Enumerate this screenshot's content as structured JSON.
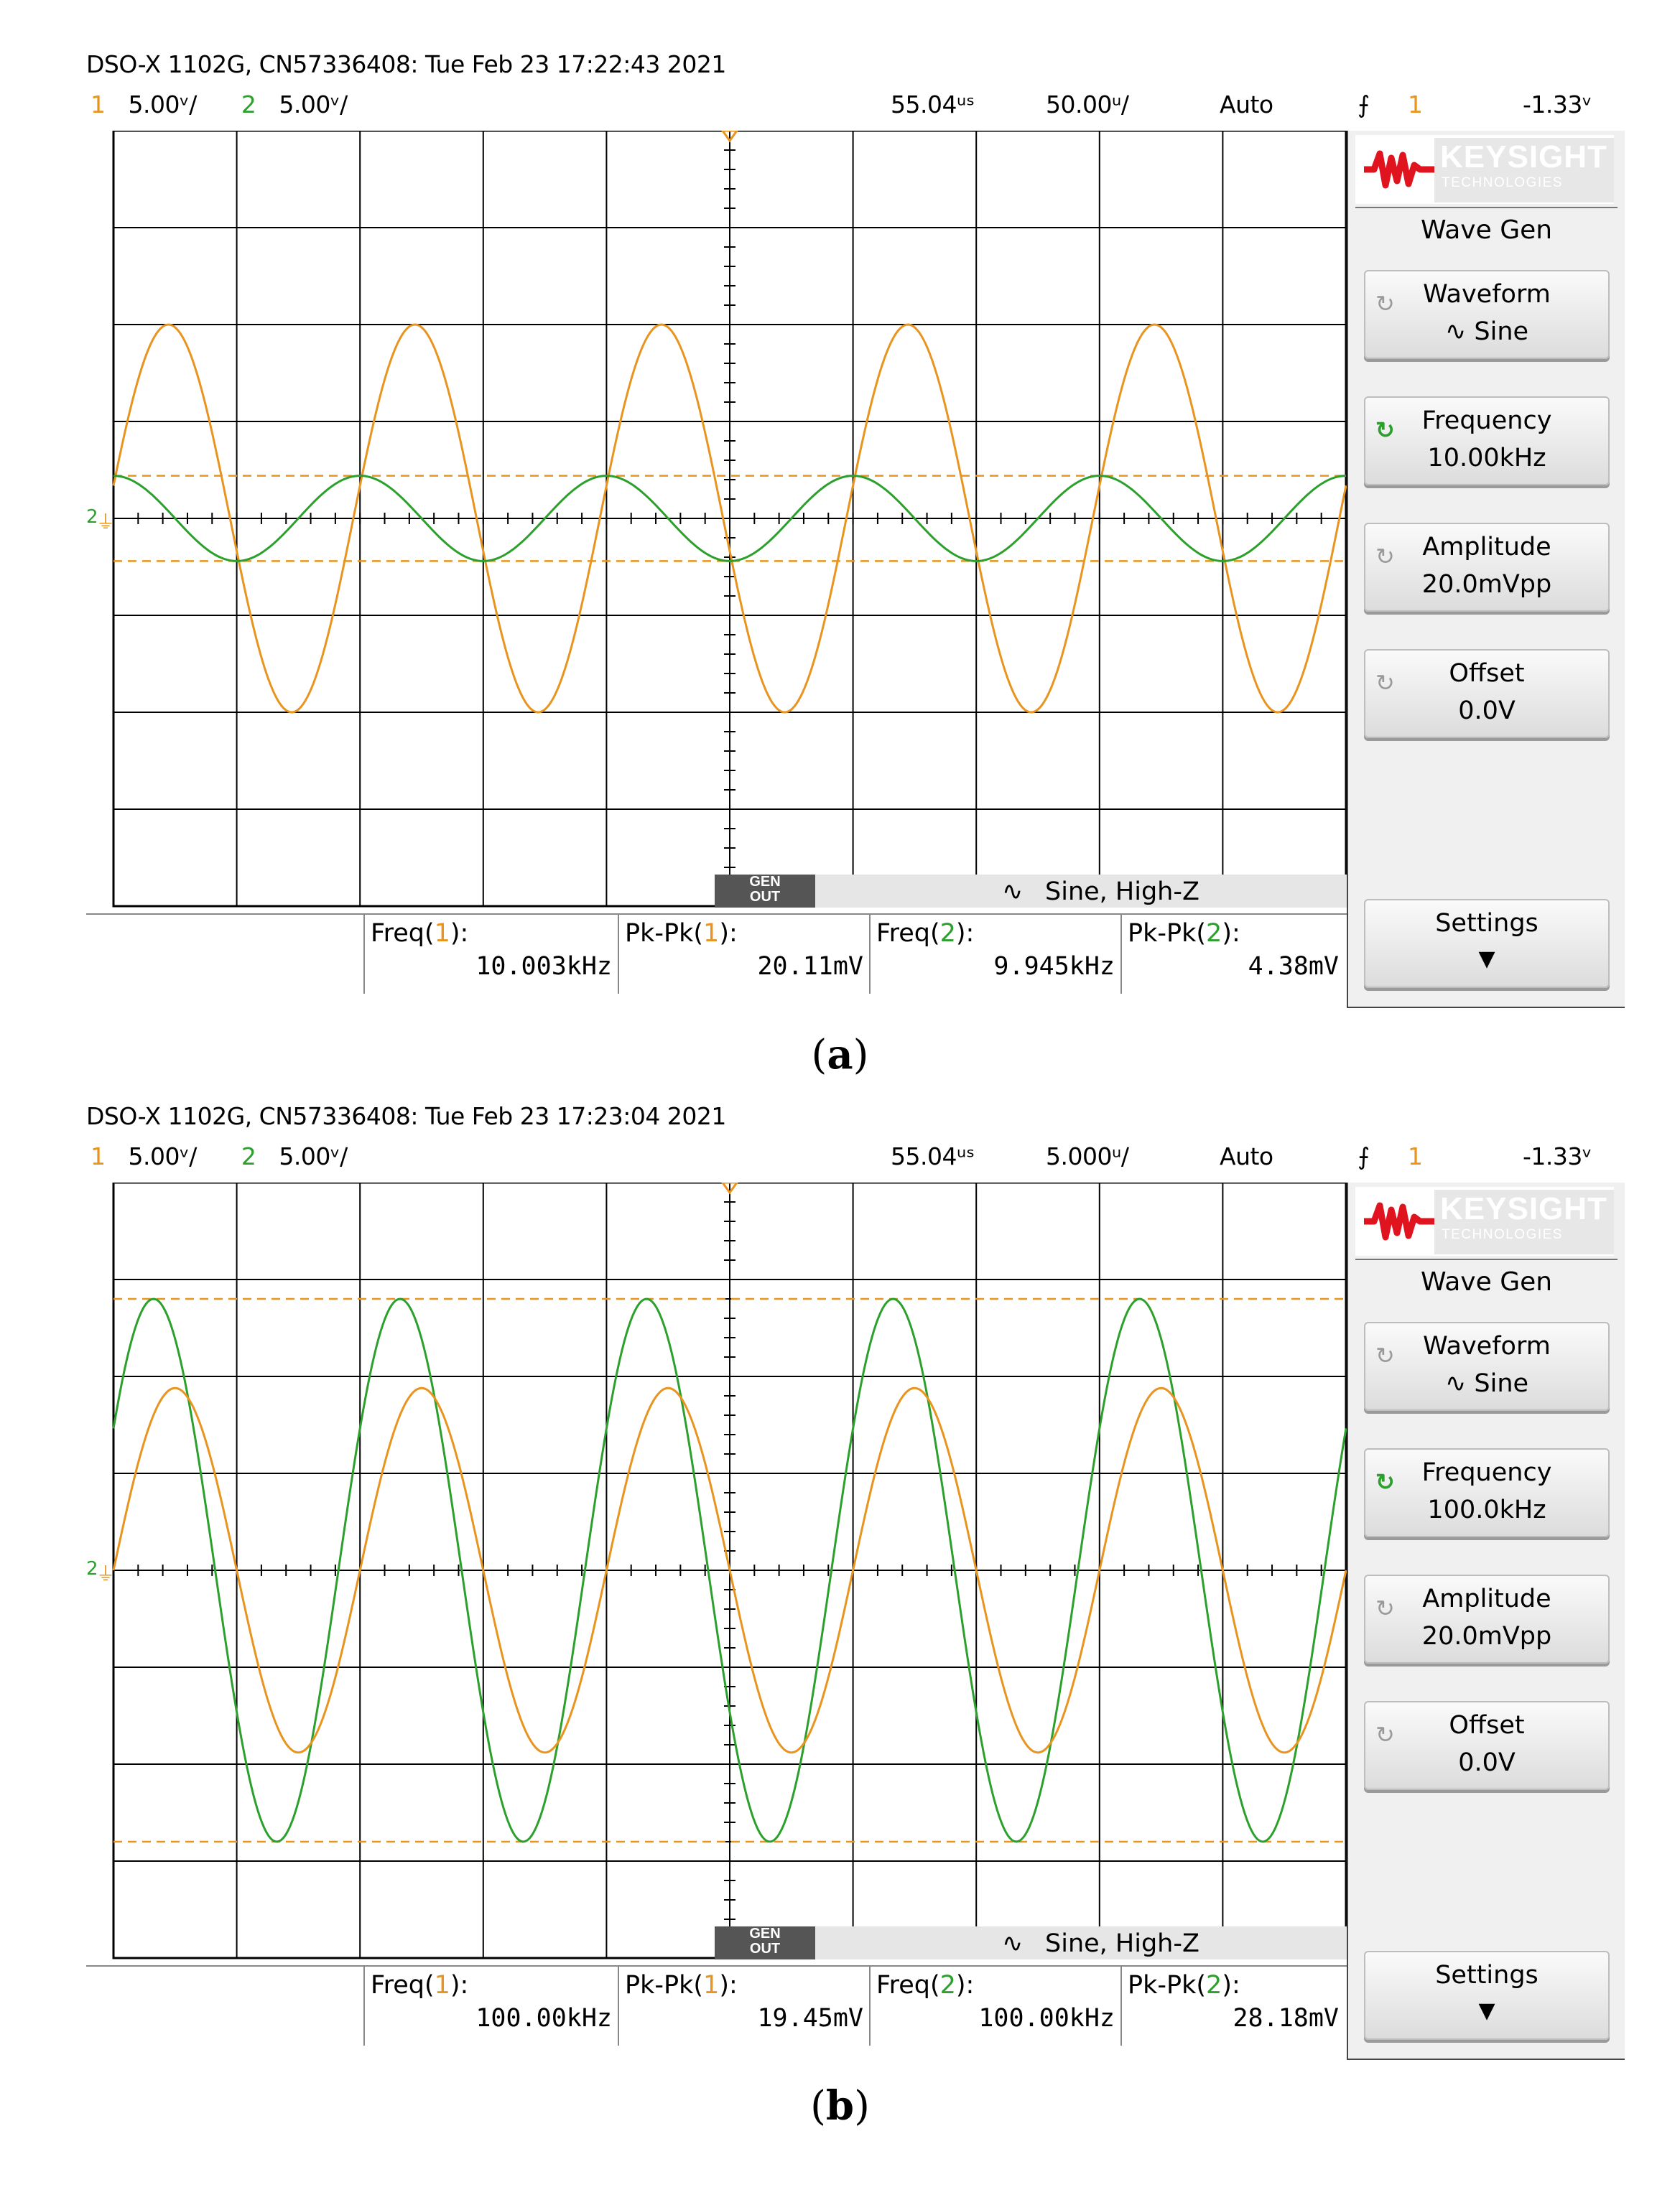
{
  "screens": [
    {
      "title_line": "DSO-X 1102G, CN57336408: Tue Feb 23 17:22:43 2021",
      "ch1_num": "1",
      "ch1_scale": "5.00ᵛ/",
      "ch2_num": "2",
      "ch2_scale": "5.00ᵛ/",
      "time_delay": "55.04ᵘˢ",
      "time_scale": "50.00ᵘ/",
      "trigger_mode": "Auto",
      "trigger_channel": "1",
      "trigger_level": "-1.33ᵛ",
      "gen_out": "GEN OUT",
      "gen_status": "Sine, High-Z",
      "measurements": [
        {
          "label": "Freq(",
          "ch": "1",
          "close": "):",
          "value": "10.003kHz"
        },
        {
          "label": "Pk-Pk(",
          "ch": "1",
          "close": "):",
          "value": "20.11mV"
        },
        {
          "label": "Freq(",
          "ch": "2",
          "close": "):",
          "value": "9.945kHz"
        },
        {
          "label": "Pk-Pk(",
          "ch": "2",
          "close": "):",
          "value": "4.38mV"
        }
      ],
      "panel": {
        "brand": "KEYSIGHT",
        "brand_sub": "TECHNOLOGIES",
        "title": "Wave Gen",
        "buttons": [
          {
            "label": "Waveform",
            "value": "Sine"
          },
          {
            "label": "Frequency",
            "value": "10.00kHz"
          },
          {
            "label": "Amplitude",
            "value": "20.0mVpp"
          },
          {
            "label": "Offset",
            "value": "0.0V"
          }
        ],
        "settings": "Settings"
      },
      "caption_open": "(",
      "caption_letter": "a",
      "caption_close": ")",
      "trace_params": {
        "ch1_amp_div": 2.0,
        "ch2_amp_div": 0.44,
        "periods_per_screen": 5.0
      }
    },
    {
      "title_line": "DSO-X 1102G, CN57336408: Tue Feb 23 17:23:04 2021",
      "ch1_num": "1",
      "ch1_scale": "5.00ᵛ/",
      "ch2_num": "2",
      "ch2_scale": "5.00ᵛ/",
      "time_delay": "55.04ᵘˢ",
      "time_scale": "5.000ᵘ/",
      "trigger_mode": "Auto",
      "trigger_channel": "1",
      "trigger_level": "-1.33ᵛ",
      "gen_out": "GEN OUT",
      "gen_status": "Sine, High-Z",
      "measurements": [
        {
          "label": "Freq(",
          "ch": "1",
          "close": "):",
          "value": "100.00kHz"
        },
        {
          "label": "Pk-Pk(",
          "ch": "1",
          "close": "):",
          "value": "19.45mV"
        },
        {
          "label": "Freq(",
          "ch": "2",
          "close": "):",
          "value": "100.00kHz"
        },
        {
          "label": "Pk-Pk(",
          "ch": "2",
          "close": "):",
          "value": "28.18mV"
        }
      ],
      "panel": {
        "brand": "KEYSIGHT",
        "brand_sub": "TECHNOLOGIES",
        "title": "Wave Gen",
        "buttons": [
          {
            "label": "Waveform",
            "value": "Sine"
          },
          {
            "label": "Frequency",
            "value": "100.0kHz"
          },
          {
            "label": "Amplitude",
            "value": "20.0mVpp"
          },
          {
            "label": "Offset",
            "value": "0.0V"
          }
        ],
        "settings": "Settings"
      },
      "caption_open": "(",
      "caption_letter": "b",
      "caption_close": ")",
      "trace_params": {
        "ch1_amp_div": 1.88,
        "ch2_amp_div": 2.8,
        "periods_per_screen": 5.0
      }
    }
  ],
  "colors": {
    "ch1": "#e8941f",
    "ch2": "#2ca02c",
    "grid": "#000000"
  }
}
